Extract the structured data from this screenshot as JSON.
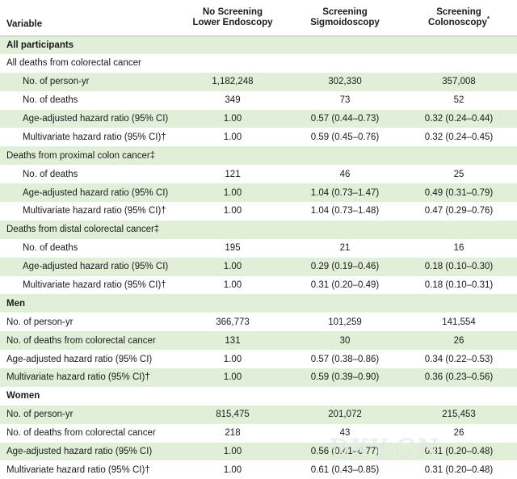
{
  "header": {
    "variable": "Variable",
    "col1_line1": "No Screening",
    "col1_line2": "Lower Endoscopy",
    "col2_line1": "Screening",
    "col2_line2": "Sigmoidoscopy",
    "col3_line1": "Screening",
    "col3_line2": "Colonoscopy",
    "col3_mark": "*"
  },
  "rows": [
    {
      "type": "section",
      "label": "All participants"
    },
    {
      "type": "sub",
      "label": "All deaths from colorectal cancer"
    },
    {
      "type": "data",
      "level": 2,
      "label": "No. of person-yr",
      "v1": "1,182,248",
      "v2": "302,330",
      "v3": "357,008"
    },
    {
      "type": "data",
      "level": 2,
      "label": "No. of deaths",
      "v1": "349",
      "v2": "73",
      "v3": "52"
    },
    {
      "type": "data",
      "level": 2,
      "label": "Age-adjusted hazard ratio (95% CI)",
      "v1": "1.00",
      "v2": "0.57 (0.44–0.73)",
      "v3": "0.32 (0.24–0.44)"
    },
    {
      "type": "data",
      "level": 2,
      "label": "Multivariate hazard ratio (95% CI)†",
      "v1": "1.00",
      "v2": "0.59 (0.45–0.76)",
      "v3": "0.32 (0.24–0.45)"
    },
    {
      "type": "sub",
      "label": "Deaths from proximal colon cancer‡"
    },
    {
      "type": "data",
      "level": 2,
      "label": "No. of deaths",
      "v1": "121",
      "v2": "46",
      "v3": "25"
    },
    {
      "type": "data",
      "level": 2,
      "label": "Age-adjusted hazard ratio (95% CI)",
      "v1": "1.00",
      "v2": "1.04 (0.73–1.47)",
      "v3": "0.49 (0.31–0.79)"
    },
    {
      "type": "data",
      "level": 2,
      "label": "Multivariate hazard ratio (95% CI)†",
      "v1": "1.00",
      "v2": "1.04 (0.73–1.48)",
      "v3": "0.47 (0.29–0.76)"
    },
    {
      "type": "sub",
      "label": "Deaths from distal colorectal cancer‡"
    },
    {
      "type": "data",
      "level": 2,
      "label": "No. of deaths",
      "v1": "195",
      "v2": "21",
      "v3": "16"
    },
    {
      "type": "data",
      "level": 2,
      "label": "Age-adjusted hazard ratio (95% CI)",
      "v1": "1.00",
      "v2": "0.29 (0.19–0.46)",
      "v3": "0.18 (0.10–0.30)"
    },
    {
      "type": "data",
      "level": 2,
      "label": "Multivariate hazard ratio (95% CI)†",
      "v1": "1.00",
      "v2": "0.31 (0.20–0.49)",
      "v3": "0.18 (0.10–0.31)"
    },
    {
      "type": "section",
      "label": "Men"
    },
    {
      "type": "data",
      "level": 1,
      "label": "No. of person-yr",
      "v1": "366,773",
      "v2": "101,259",
      "v3": "141,554"
    },
    {
      "type": "data",
      "level": 1,
      "label": "No. of deaths from colorectal cancer",
      "v1": "131",
      "v2": "30",
      "v3": "26"
    },
    {
      "type": "data",
      "level": 1,
      "label": "Age-adjusted hazard ratio (95% CI)",
      "v1": "1.00",
      "v2": "0.57 (0.38–0.86)",
      "v3": "0.34 (0.22–0.53)"
    },
    {
      "type": "data",
      "level": 1,
      "label": "Multivariate hazard ratio (95% CI)†",
      "v1": "1.00",
      "v2": "0.59 (0.39–0.90)",
      "v3": "0.36 (0.23–0.56)"
    },
    {
      "type": "section",
      "label": "Women"
    },
    {
      "type": "data",
      "level": 1,
      "label": "No. of person-yr",
      "v1": "815,475",
      "v2": "201,072",
      "v3": "215,453"
    },
    {
      "type": "data",
      "level": 1,
      "label": "No. of deaths from colorectal cancer",
      "v1": "218",
      "v2": "43",
      "v3": "26"
    },
    {
      "type": "data",
      "level": 1,
      "label": "Age-adjusted hazard ratio (95% CI)",
      "v1": "1.00",
      "v2": "0.56 (0.41–0.77)",
      "v3": "0.31 (0.20–0.48)"
    },
    {
      "type": "data",
      "level": 1,
      "label": "Multivariate hazard ratio (95% CI)†",
      "v1": "1.00",
      "v2": "0.61 (0.43–0.85)",
      "v3": "0.31 (0.20–0.48)"
    }
  ],
  "watermark": "DXY.CN",
  "colors": {
    "shade": "#e1efd9",
    "rule": "#b9b9b9"
  }
}
